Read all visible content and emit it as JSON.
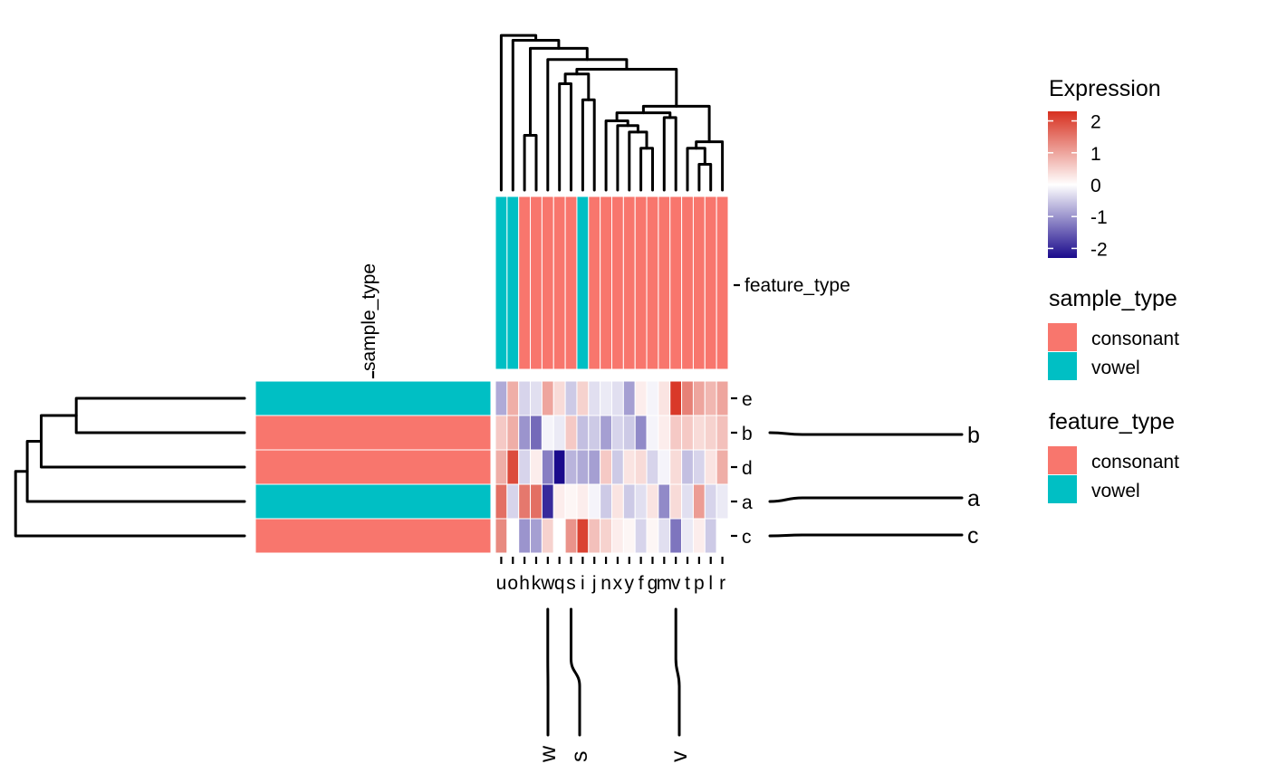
{
  "chart_data": {
    "type": "heatmap",
    "rows": [
      "e",
      "b",
      "d",
      "a",
      "c"
    ],
    "columns": [
      "u",
      "o",
      "h",
      "k",
      "w",
      "q",
      "s",
      "i",
      "j",
      "n",
      "x",
      "y",
      "f",
      "g",
      "m",
      "v",
      "t",
      "p",
      "l",
      "r"
    ],
    "values": [
      [
        -0.8,
        0.9,
        -0.4,
        -0.3,
        1.0,
        0.4,
        -0.5,
        0.5,
        -0.3,
        -0.2,
        -0.3,
        -0.9,
        0.2,
        -0.1,
        0.3,
        2.2,
        1.4,
        1.0,
        0.8,
        1.0
      ],
      [
        0.6,
        0.9,
        -1.0,
        -1.4,
        -0.1,
        -0.2,
        0.6,
        -0.6,
        -0.5,
        -0.9,
        -0.4,
        -0.5,
        -1.1,
        -0.1,
        0.2,
        0.6,
        0.6,
        0.4,
        0.5,
        0.7
      ],
      [
        0.9,
        2.0,
        -0.4,
        0.2,
        -1.2,
        -2.3,
        -0.7,
        -0.8,
        -0.9,
        0.6,
        -0.5,
        0.3,
        0.4,
        -0.4,
        -0.1,
        0.4,
        -0.6,
        -0.4,
        0.3,
        0.9
      ],
      [
        1.6,
        -0.4,
        1.5,
        1.6,
        -2.0,
        0.2,
        0.1,
        0.2,
        -0.1,
        -0.5,
        0.3,
        -0.5,
        -0.3,
        0.3,
        -1.1,
        0.4,
        -0.3,
        1.1,
        -0.4,
        -0.2
      ],
      [
        1.3,
        0.0,
        -1.0,
        -0.9,
        0.5,
        0.0,
        1.2,
        2.1,
        0.7,
        0.5,
        0.2,
        0.1,
        -0.4,
        0.1,
        -0.3,
        -1.3,
        -0.2,
        0.2,
        -0.5,
        0.0
      ]
    ],
    "sample_type": {
      "e": "vowel",
      "b": "consonant",
      "d": "consonant",
      "a": "vowel",
      "c": "consonant"
    },
    "feature_type": {
      "u": "vowel",
      "o": "vowel",
      "h": "consonant",
      "k": "consonant",
      "w": "consonant",
      "q": "consonant",
      "s": "consonant",
      "i": "vowel",
      "j": "consonant",
      "n": "consonant",
      "x": "consonant",
      "y": "consonant",
      "f": "consonant",
      "g": "consonant",
      "m": "consonant",
      "v": "consonant",
      "t": "consonant",
      "p": "consonant",
      "l": "consonant",
      "r": "consonant"
    },
    "row_annotation_label": "sample_type",
    "col_annotation_label": "feature_type",
    "highlighted_rows": [
      "b",
      "a",
      "c"
    ],
    "highlighted_columns": [
      "w",
      "s",
      "v"
    ],
    "color_scale": {
      "low": "#1a0a8c",
      "mid": "#ffffff",
      "high": "#d7301f",
      "limits": [
        -2.3,
        2.3
      ],
      "breaks": [
        2,
        1,
        0,
        -1,
        -2
      ]
    }
  },
  "legends": {
    "expression": {
      "title": "Expression",
      "tick_labels": [
        "2",
        "1",
        "0",
        "-1",
        "-2"
      ]
    },
    "sample_type": {
      "title": "sample_type",
      "items": [
        {
          "label": "consonant",
          "color": "#f8766d"
        },
        {
          "label": "vowel",
          "color": "#00bfc4"
        }
      ]
    },
    "feature_type": {
      "title": "feature_type",
      "items": [
        {
          "label": "consonant",
          "color": "#f8766d"
        },
        {
          "label": "vowel",
          "color": "#00bfc4"
        }
      ]
    }
  },
  "colors": {
    "consonant": "#f8766d",
    "vowel": "#00bfc4"
  }
}
